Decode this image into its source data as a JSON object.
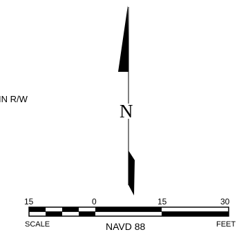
{
  "annotation": {
    "rw_label": "IN R/W"
  },
  "north_arrow": {
    "letter": "N"
  },
  "scale_bar": {
    "ticks": [
      "15",
      "0",
      "15",
      "30"
    ],
    "left_word": "SCALE",
    "right_word": "FEET",
    "units_label": "NAVD 88"
  },
  "colors": {
    "ink": "#000000",
    "paper": "#ffffff"
  }
}
